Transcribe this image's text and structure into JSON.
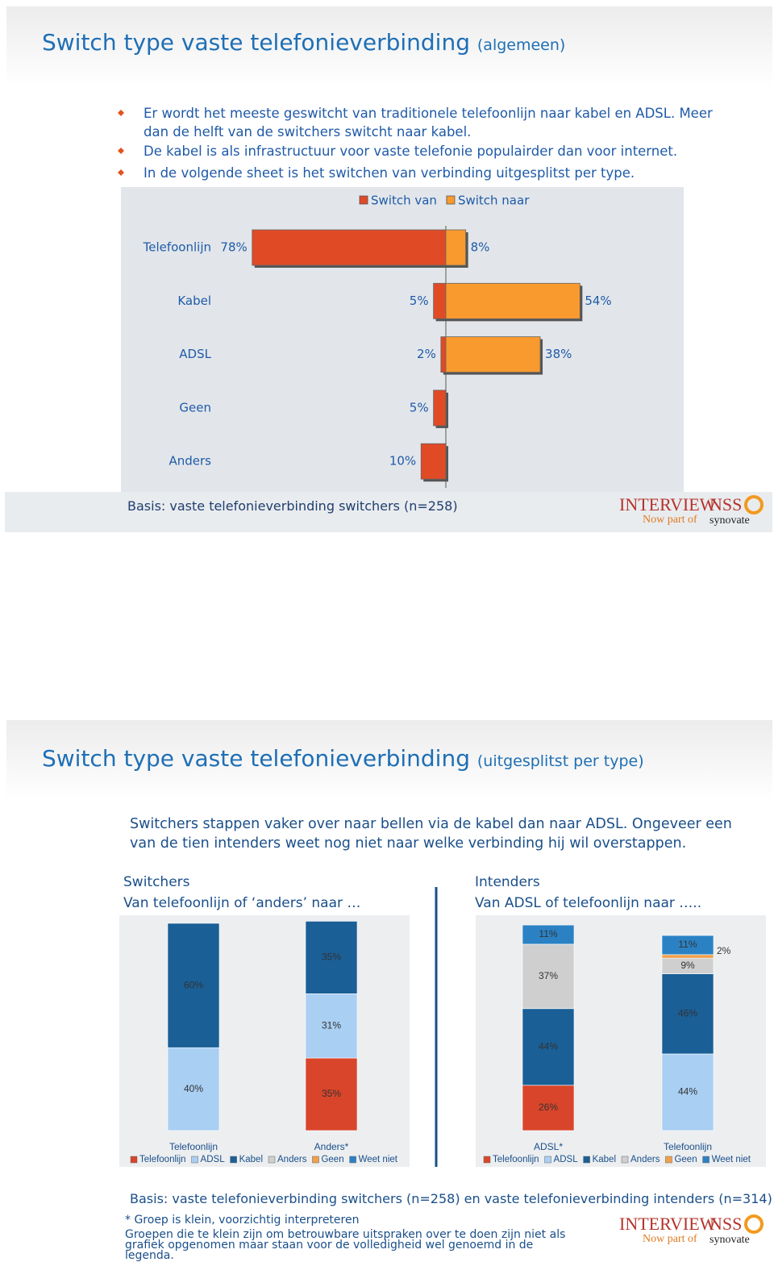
{
  "slide1": {
    "title": "Switch type vaste telefonieverbinding",
    "title_suffix": "(algemeen)",
    "bullets": [
      "Er wordt het meeste geswitcht van traditionele telefoonlijn naar kabel en ADSL. Meer dan de helft van de switchers switcht naar kabel.",
      "De kabel is als infrastructuur voor vaste telefonie populairder dan voor internet.",
      "In de volgende sheet is het switchen van verbinding uitgesplitst per type."
    ],
    "basis": "Basis: vaste telefonieverbinding switchers (n=258)",
    "logo": {
      "brand": "INTERVIEW",
      "brand2": "NSS",
      "tagline": "Now part of",
      "parent": "synovate"
    }
  },
  "slide2": {
    "title": "Switch type vaste telefonieverbinding",
    "title_suffix": "(uitgesplitst per type)",
    "intro": "Switchers stappen vaker over naar bellen via de kabel dan naar ADSL. Ongeveer een van de tien intenders weet nog niet naar welke verbinding hij wil overstappen.",
    "left_heading": "Switchers",
    "left_subheading": "Van telefoonlijn of ‘anders’ naar …",
    "right_heading": "Intenders",
    "right_subheading": "Van ADSL of telefoonlijn naar …..",
    "basis": "Basis: vaste telefonieverbinding switchers (n=258) en vaste telefonieverbinding intenders (n=314)",
    "note": "* Groep is klein, voorzichtig interpreteren",
    "note2": "Groepen die te klein zijn om betrouwbare uitspraken over te doen zijn niet als grafiek opgenomen maar staan voor de volledigheid wel genoemd in de legenda.",
    "logo": {
      "brand": "INTERVIEW",
      "brand2": "NSS",
      "tagline": "Now part of",
      "parent": "synovate"
    }
  },
  "chart_data": [
    {
      "type": "diverging-bar",
      "categories": [
        "Telefoonlijn",
        "Kabel",
        "ADSL",
        "Geen",
        "Anders"
      ],
      "series": [
        {
          "name": "Switch van",
          "color": "#e04a25",
          "values": [
            78,
            5,
            2,
            5,
            10
          ],
          "value_labels": [
            "78%",
            "5%",
            "2%",
            "5%",
            "10%"
          ]
        },
        {
          "name": "Switch naar",
          "color": "#f99a2e",
          "values": [
            8,
            54,
            38,
            null,
            null
          ],
          "value_labels": [
            "8%",
            "54%",
            "38%",
            null,
            null
          ]
        }
      ]
    },
    {
      "type": "stacked-bar",
      "categories": [
        "Telefoonlijn",
        "Anders*"
      ],
      "series": [
        {
          "name": "Telefoonlijn",
          "color": "#d9452a",
          "values": [
            null,
            35
          ],
          "value_labels": [
            null,
            "35%"
          ]
        },
        {
          "name": "ADSL",
          "color": "#a9cff3",
          "values": [
            40,
            31
          ],
          "value_labels": [
            "40%",
            "31%"
          ]
        },
        {
          "name": "Kabel",
          "color": "#1a5f96",
          "values": [
            60,
            35
          ],
          "value_labels": [
            "60%",
            "35%"
          ]
        },
        {
          "name": "Anders",
          "color": "#cfcfcf",
          "values": [
            null,
            null
          ]
        },
        {
          "name": "Geen",
          "color": "#f0a04b",
          "values": [
            null,
            null
          ]
        },
        {
          "name": "Weet niet",
          "color": "#2a82c4",
          "values": [
            null,
            null
          ]
        }
      ]
    },
    {
      "type": "stacked-bar",
      "categories": [
        "ADSL*",
        "Telefoonlijn"
      ],
      "series": [
        {
          "name": "Telefoonlijn",
          "color": "#d9452a",
          "values": [
            26,
            null
          ],
          "value_labels": [
            "26%",
            null
          ]
        },
        {
          "name": "ADSL",
          "color": "#a9cff3",
          "values": [
            null,
            44
          ],
          "value_labels": [
            null,
            "44%"
          ]
        },
        {
          "name": "Kabel",
          "color": "#1a5f96",
          "values": [
            44,
            46
          ],
          "value_labels": [
            "44%",
            "46%"
          ]
        },
        {
          "name": "Anders",
          "color": "#cfcfcf",
          "values": [
            37,
            9
          ],
          "value_labels": [
            "37%",
            "9%"
          ]
        },
        {
          "name": "Geen",
          "color": "#f0a04b",
          "values": [
            null,
            2
          ],
          "value_labels": [
            null,
            "2%"
          ]
        },
        {
          "name": "Weet niet",
          "color": "#2a82c4",
          "values": [
            11,
            11
          ],
          "value_labels": [
            "11%",
            "11%"
          ]
        }
      ]
    }
  ]
}
